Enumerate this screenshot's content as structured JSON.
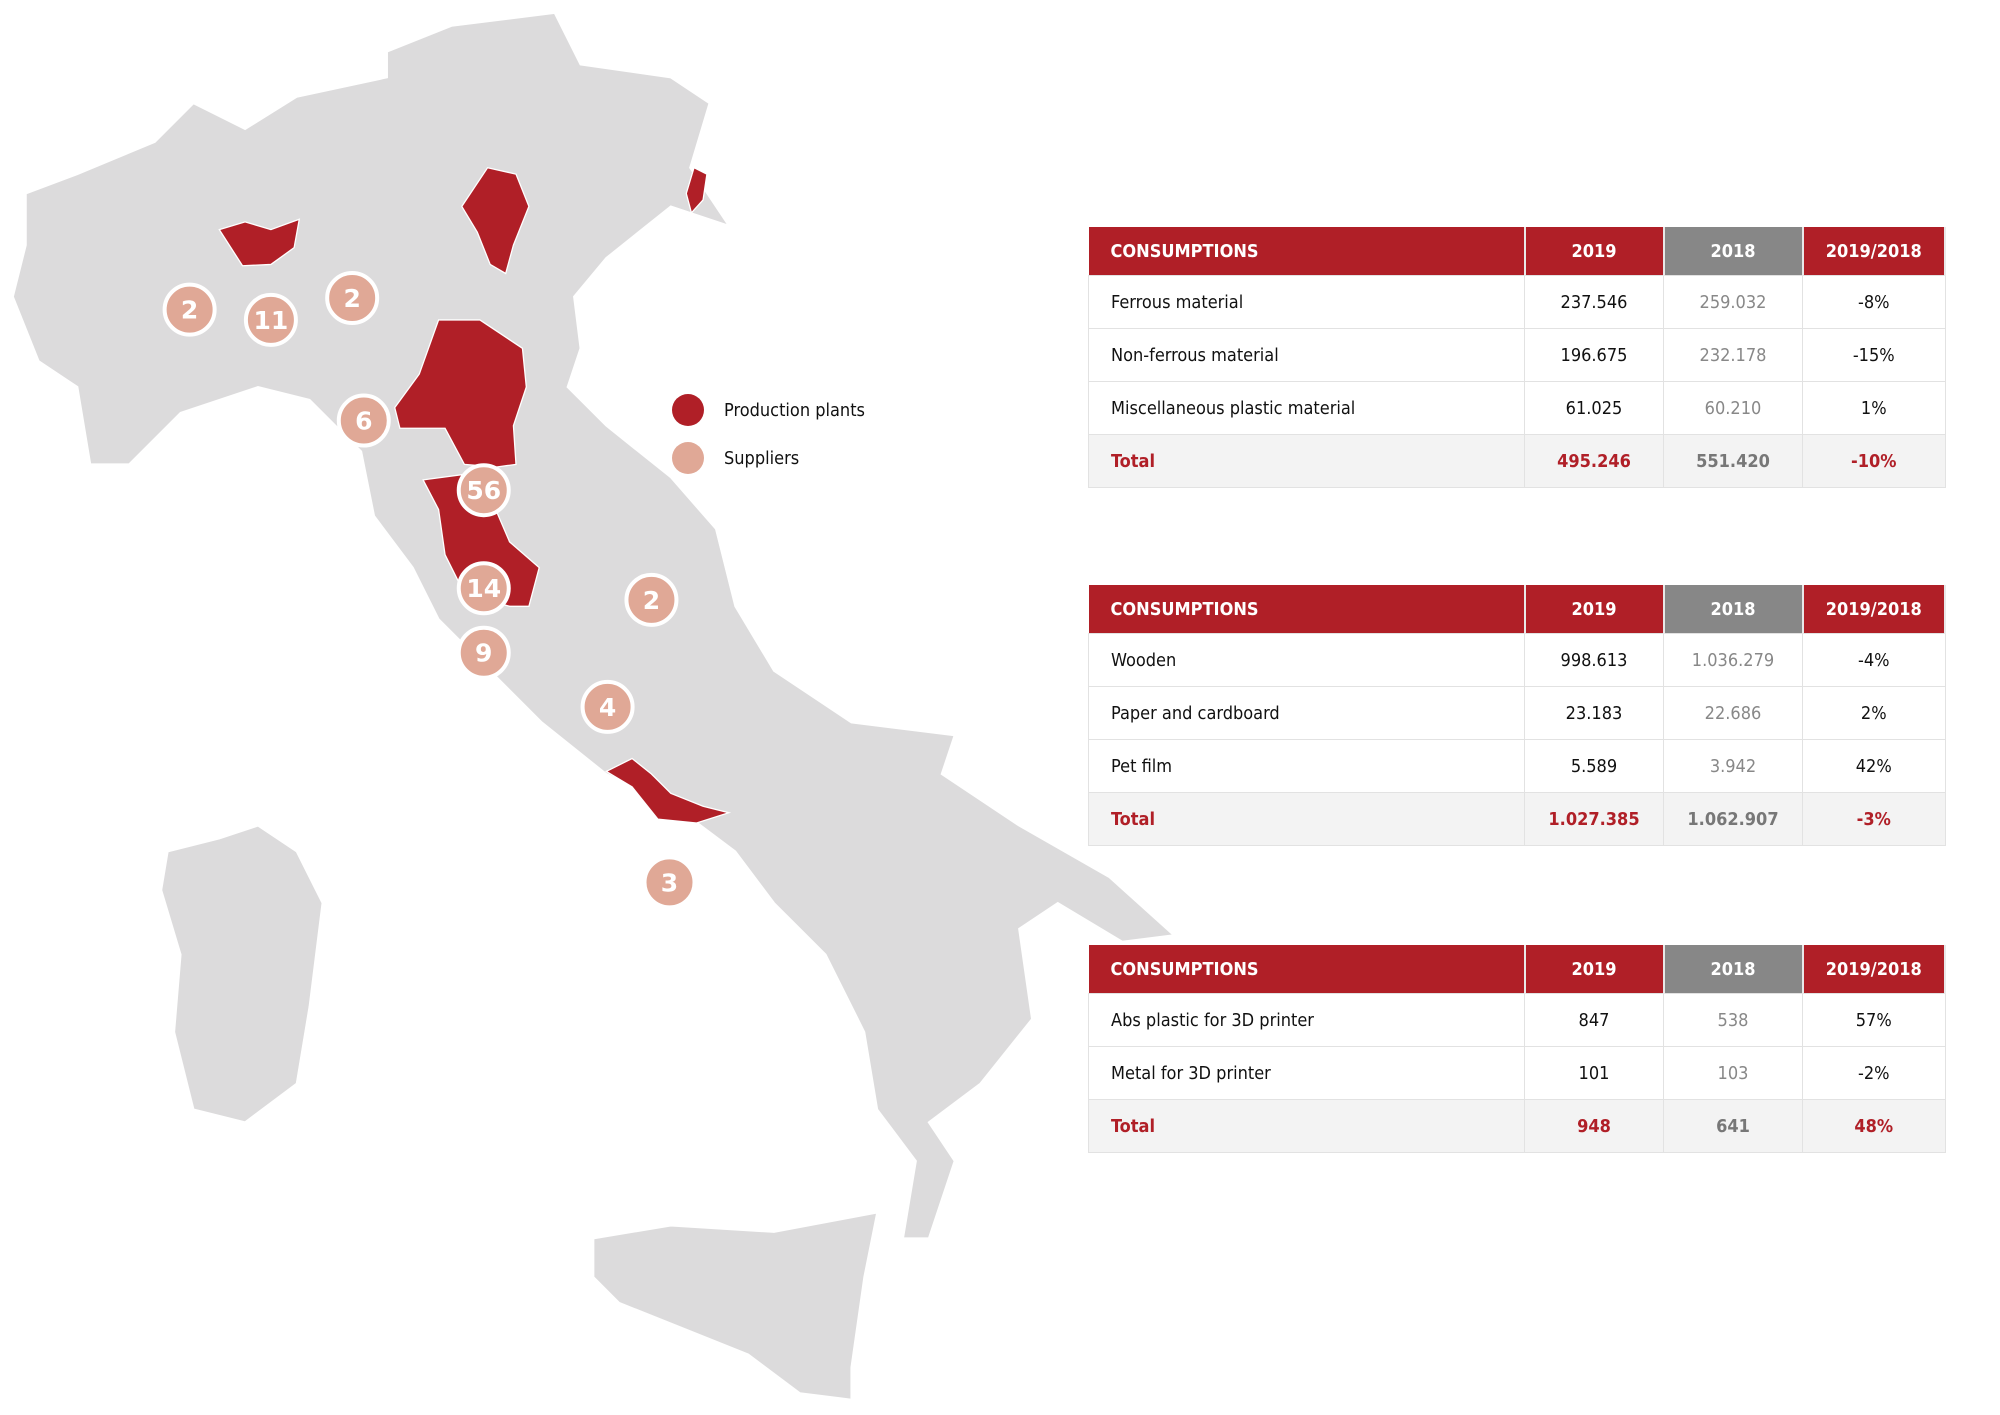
{
  "colors": {
    "accent": "#b01f27",
    "supplier": "#e0a896",
    "land": "#dcdbdc",
    "header_2018": "#878787"
  },
  "legend": [
    {
      "label": "Production plants",
      "color": "#b01f27"
    },
    {
      "label": "Suppliers",
      "color": "#e0a896"
    }
  ],
  "suppliers": [
    "2",
    "11",
    "2",
    "6",
    "56",
    "14",
    "9",
    "2",
    "4",
    "3"
  ],
  "tables": [
    {
      "header": [
        "CONSUMPTIONS",
        "2019",
        "2018",
        "2019/2018"
      ],
      "rows": [
        [
          "Ferrous material",
          "237.546",
          "259.032",
          "-8%"
        ],
        [
          "Non-ferrous material",
          "196.675",
          "232.178",
          "-15%"
        ],
        [
          "Miscellaneous plastic material",
          "61.025",
          "60.210",
          "1%"
        ]
      ],
      "total": [
        "Total",
        "495.246",
        "551.420",
        "-10%"
      ]
    },
    {
      "header": [
        "CONSUMPTIONS",
        "2019",
        "2018",
        "2019/2018"
      ],
      "rows": [
        [
          "Wooden",
          "998.613",
          "1.036.279",
          "-4%"
        ],
        [
          "Paper and cardboard",
          "23.183",
          "22.686",
          "2%"
        ],
        [
          "Pet film",
          "5.589",
          "3.942",
          "42%"
        ]
      ],
      "total": [
        "Total",
        "1.027.385",
        "1.062.907",
        "-3%"
      ]
    },
    {
      "header": [
        "CONSUMPTIONS",
        "2019",
        "2018",
        "2019/2018"
      ],
      "rows": [
        [
          "Abs plastic for 3D printer",
          "847",
          "538",
          "57%"
        ],
        [
          "Metal for 3D printer",
          "101",
          "103",
          "-2%"
        ]
      ],
      "total": [
        "Total",
        "948",
        "641",
        "48%"
      ]
    }
  ]
}
